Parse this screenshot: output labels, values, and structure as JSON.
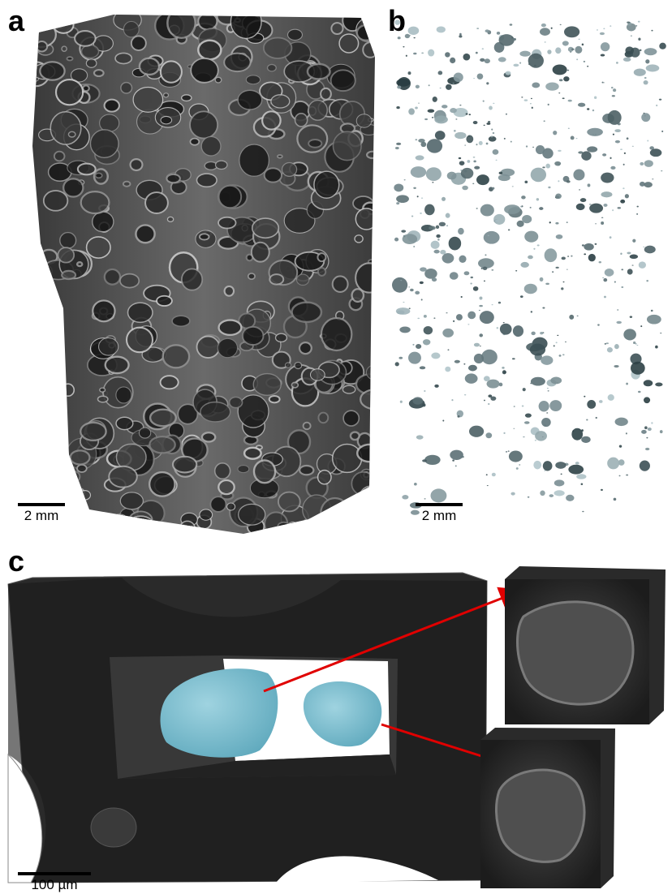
{
  "panels": [
    {
      "label": "a",
      "scale_bar": "2 mm"
    },
    {
      "label": "b",
      "scale_bar": "2 mm"
    },
    {
      "label": "c",
      "scale_bar": "100 µm"
    }
  ]
}
